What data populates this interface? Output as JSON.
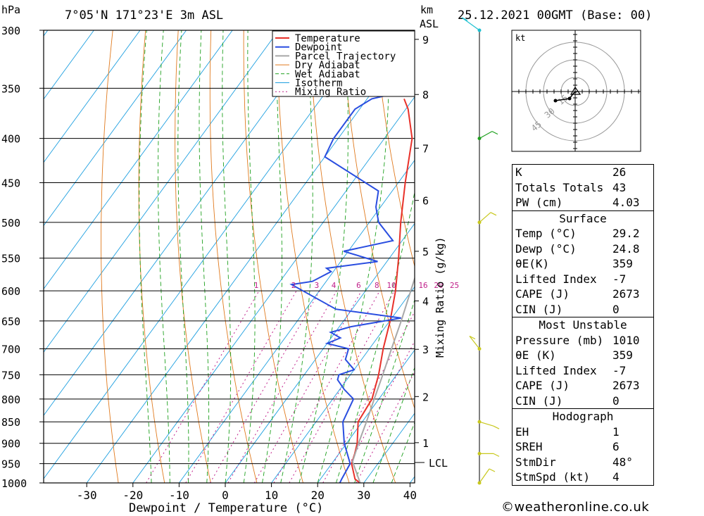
{
  "header": {
    "hpa_unit": "hPa",
    "location": "7°05'N  171°23'E  3m  ASL",
    "km_unit": "km",
    "asl_unit": "ASL",
    "datetime": "25.12.2021  00GMT  (Base: 00)"
  },
  "axes": {
    "xlabel": "Dewpoint / Temperature (°C)",
    "x_ticks": [
      "-30",
      "-20",
      "-10",
      "0",
      "10",
      "20",
      "30",
      "40"
    ],
    "p_ticks": [
      "300",
      "350",
      "400",
      "450",
      "500",
      "550",
      "600",
      "650",
      "700",
      "750",
      "800",
      "850",
      "900",
      "950",
      "1000"
    ],
    "km_ticks": [
      "1",
      "2",
      "3",
      "4",
      "5",
      "6",
      "7",
      "8",
      "9"
    ],
    "lcl_label": "LCL",
    "mixing_ratio_axis_label": "Mixing Ratio (g/kg)",
    "mixing_ratio_ticks": [
      "1",
      "2",
      "3",
      "4",
      "6",
      "8",
      "10",
      "16",
      "20",
      "25"
    ]
  },
  "legend": {
    "items": [
      {
        "label": "Temperature",
        "color": "#e8312a"
      },
      {
        "label": "Dewpoint",
        "color": "#2a4ee0"
      },
      {
        "label": "Parcel Trajectory",
        "color": "#a8a8a8"
      },
      {
        "label": "Dry Adiabat",
        "color": "#e07a1e"
      },
      {
        "label": "Wet Adiabat",
        "color": "#1ea01e"
      },
      {
        "label": "Isotherm",
        "color": "#1e9fe0"
      },
      {
        "label": "Mixing Ratio",
        "color": "#c0208a"
      }
    ]
  },
  "chart_data": {
    "type": "line",
    "title": "7°05'N 171°23'E 3m ASL",
    "xlabel": "Dewpoint / Temperature (°C)",
    "ylabel": "hPa",
    "xlim": [
      -40,
      40
    ],
    "ylim": [
      1000,
      300
    ],
    "series": [
      {
        "name": "Temperature",
        "color": "#e8312a",
        "points": [
          [
            1000,
            29.2
          ],
          [
            990,
            27.5
          ],
          [
            950,
            24.3
          ],
          [
            925,
            23.4
          ],
          [
            900,
            22.3
          ],
          [
            850,
            19.1
          ],
          [
            800,
            18.5
          ],
          [
            750,
            16.1
          ],
          [
            700,
            13.0
          ],
          [
            650,
            10.1
          ],
          [
            600,
            6.5
          ],
          [
            550,
            2.0
          ],
          [
            500,
            -3.2
          ],
          [
            450,
            -8.5
          ],
          [
            400,
            -14.0
          ],
          [
            370,
            -19.5
          ],
          [
            360,
            -22.0
          ]
        ]
      },
      {
        "name": "Dewpoint",
        "color": "#2a4ee0",
        "points": [
          [
            1000,
            24.8
          ],
          [
            990,
            24.6
          ],
          [
            950,
            24.0
          ],
          [
            900,
            19.5
          ],
          [
            850,
            15.8
          ],
          [
            800,
            14.5
          ],
          [
            780,
            11.0
          ],
          [
            760,
            8.0
          ],
          [
            750,
            7.5
          ],
          [
            740,
            10.0
          ],
          [
            720,
            6.5
          ],
          [
            700,
            5.5
          ],
          [
            690,
            0.0
          ],
          [
            680,
            2.0
          ],
          [
            670,
            -1.0
          ],
          [
            660,
            2.5
          ],
          [
            645,
            12.0
          ],
          [
            630,
            -3.5
          ],
          [
            590,
            -17.0
          ],
          [
            585,
            -13.0
          ],
          [
            570,
            -10.5
          ],
          [
            565,
            -12.0
          ],
          [
            555,
            -2.0
          ],
          [
            540,
            -11.0
          ],
          [
            525,
            -2.0
          ],
          [
            500,
            -8.0
          ],
          [
            480,
            -11.0
          ],
          [
            460,
            -13.0
          ],
          [
            420,
            -30.0
          ],
          [
            400,
            -31.0
          ],
          [
            370,
            -31.0
          ],
          [
            360,
            -29.0
          ],
          [
            335,
            -8.0
          ],
          [
            320,
            -22.0
          ],
          [
            300,
            -18.5
          ]
        ]
      },
      {
        "name": "Parcel Trajectory",
        "color": "#a8a8a8",
        "points": [
          [
            1000,
            29.2
          ],
          [
            945,
            24.2
          ],
          [
            900,
            22.6
          ],
          [
            850,
            20.9
          ],
          [
            800,
            19.0
          ],
          [
            750,
            17.0
          ],
          [
            700,
            14.8
          ],
          [
            650,
            12.5
          ],
          [
            600,
            9.8
          ],
          [
            550,
            6.9
          ],
          [
            500,
            3.6
          ],
          [
            450,
            -0.5
          ],
          [
            400,
            -5.3
          ],
          [
            370,
            -8.7
          ],
          [
            360,
            -10.2
          ]
        ]
      }
    ]
  },
  "hodograph": {
    "unit": "kt",
    "ring_labels": [
      "15",
      "30",
      "45"
    ]
  },
  "indices": {
    "k_label": "K",
    "k": "26",
    "tt_label": "Totals Totals",
    "tt": "43",
    "pw_label": "PW (cm)",
    "pw": "4.03"
  },
  "surface": {
    "title": "Surface",
    "temp_label": "Temp (°C)",
    "temp": "29.2",
    "dewp_label": "Dewp (°C)",
    "dewp": "24.8",
    "theta_label": "θE(K)",
    "theta": "359",
    "li_label": "Lifted Index",
    "li": "-7",
    "cape_label": "CAPE (J)",
    "cape": "2673",
    "cin_label": "CIN (J)",
    "cin": "0"
  },
  "most_unstable": {
    "title": "Most Unstable",
    "pressure_label": "Pressure (mb)",
    "pressure": "1010",
    "theta_label": "θE (K)",
    "theta": "359",
    "li_label": "Lifted Index",
    "li": "-7",
    "cape_label": "CAPE (J)",
    "cape": "2673",
    "cin_label": "CIN (J)",
    "cin": "0"
  },
  "hodo_table": {
    "title": "Hodograph",
    "eh_label": "EH",
    "eh": "1",
    "sreh_label": "SREH",
    "sreh": "6",
    "stmdir_label": "StmDir",
    "stmdir": "48°",
    "stmspd_label": "StmSpd (kt)",
    "stmspd": "4"
  },
  "footer": {
    "credit": "©weatheronline.co.uk"
  }
}
